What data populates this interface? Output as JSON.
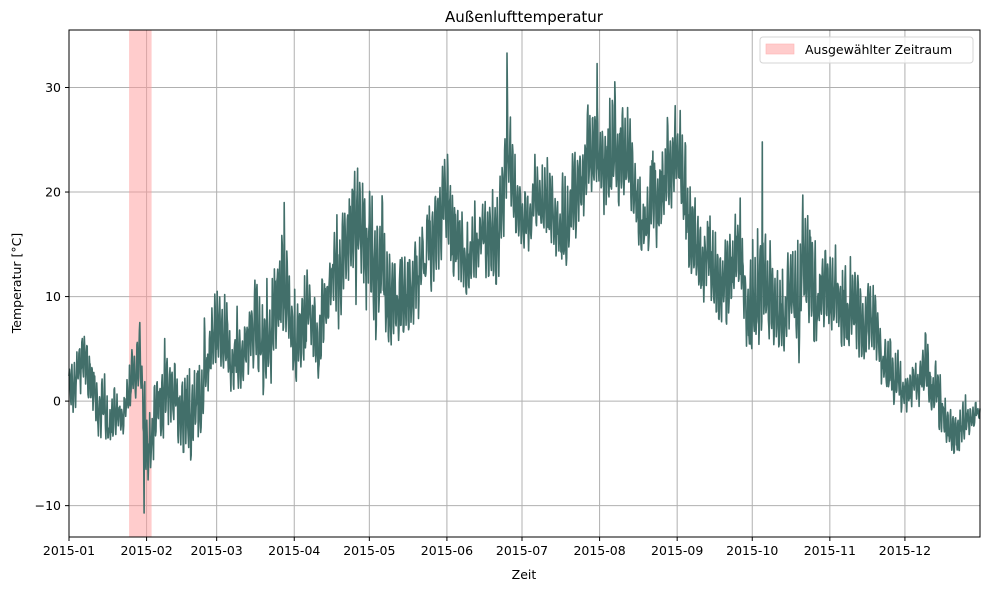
{
  "chart_data": {
    "type": "line",
    "title": "Außenlufttemperatur",
    "xlabel": "Zeit",
    "ylabel": "Temperatur [°C]",
    "xlim": [
      "2015-01-01",
      "2015-12-31"
    ],
    "ylim": [
      -13,
      35.5
    ],
    "grid": true,
    "legend_position": "upper right",
    "x_ticks": [
      "2015-01",
      "2015-02",
      "2015-03",
      "2015-04",
      "2015-05",
      "2015-06",
      "2015-07",
      "2015-08",
      "2015-09",
      "2015-10",
      "2015-11",
      "2015-12"
    ],
    "y_ticks": [
      -10,
      0,
      10,
      20,
      30
    ],
    "y_tick_labels": [
      "−10",
      "0",
      "10",
      "20",
      "30"
    ],
    "series": [
      {
        "name": "Außenlufttemperatur",
        "color": "#426f6a",
        "description": "hourly outdoor air temperature 2015; weekly min/max envelope",
        "weekly_envelope": {
          "day": [
            0,
            7,
            14,
            21,
            28,
            31,
            35,
            42,
            49,
            56,
            59,
            63,
            70,
            77,
            84,
            90,
            98,
            105,
            112,
            120,
            126,
            133,
            140,
            151,
            158,
            165,
            172,
            181,
            188,
            195,
            202,
            212,
            219,
            226,
            233,
            243,
            250,
            257,
            264,
            273,
            280,
            287,
            294,
            304,
            311,
            318,
            325,
            334,
            341,
            348,
            355,
            364
          ],
          "min": [
            -5,
            1,
            -6,
            -5,
            -3,
            -10.5,
            -5,
            -3,
            -8,
            -2,
            -3,
            -2,
            -1,
            -3,
            0,
            0,
            1,
            1,
            3,
            4,
            5,
            6,
            8,
            9,
            10,
            12,
            11,
            13,
            14,
            13,
            13,
            14,
            15,
            13,
            14,
            12,
            10,
            9,
            6,
            5,
            6,
            3,
            1,
            0,
            0,
            -1,
            -2,
            -1,
            -2,
            -3,
            -5.5,
            -1.5
          ],
          "max": [
            7,
            10,
            5,
            1,
            8,
            3,
            9,
            11,
            9,
            8,
            11,
            10,
            9,
            14,
            19,
            16,
            12,
            17,
            22,
            27,
            23,
            23,
            22,
            25,
            23,
            22,
            33,
            24,
            26,
            27,
            29,
            30,
            32,
            27,
            30,
            29,
            25,
            24,
            22,
            23,
            25,
            16,
            21,
            15,
            15,
            12,
            10,
            8,
            7,
            6,
            3,
            1.5
          ]
        },
        "notable_extremes": [
          {
            "date": "2015-01-31",
            "value": -10.7
          },
          {
            "date": "2015-06-25",
            "value": 33.3
          },
          {
            "date": "2015-07-31",
            "value": 32.3
          },
          {
            "date": "2015-03-28",
            "value": 19.0
          },
          {
            "date": "2015-10-05",
            "value": 24.8
          }
        ]
      }
    ],
    "highlight_span": {
      "label": "Ausgewählter Zeitraum",
      "start": "2015-01-25",
      "end": "2015-02-03",
      "color": "#ffcccc"
    }
  },
  "labels": {
    "title": "Außenlufttemperatur",
    "xlabel": "Zeit",
    "ylabel": "Temperatur [°C]",
    "legend_label": "Ausgewählter Zeitraum"
  }
}
